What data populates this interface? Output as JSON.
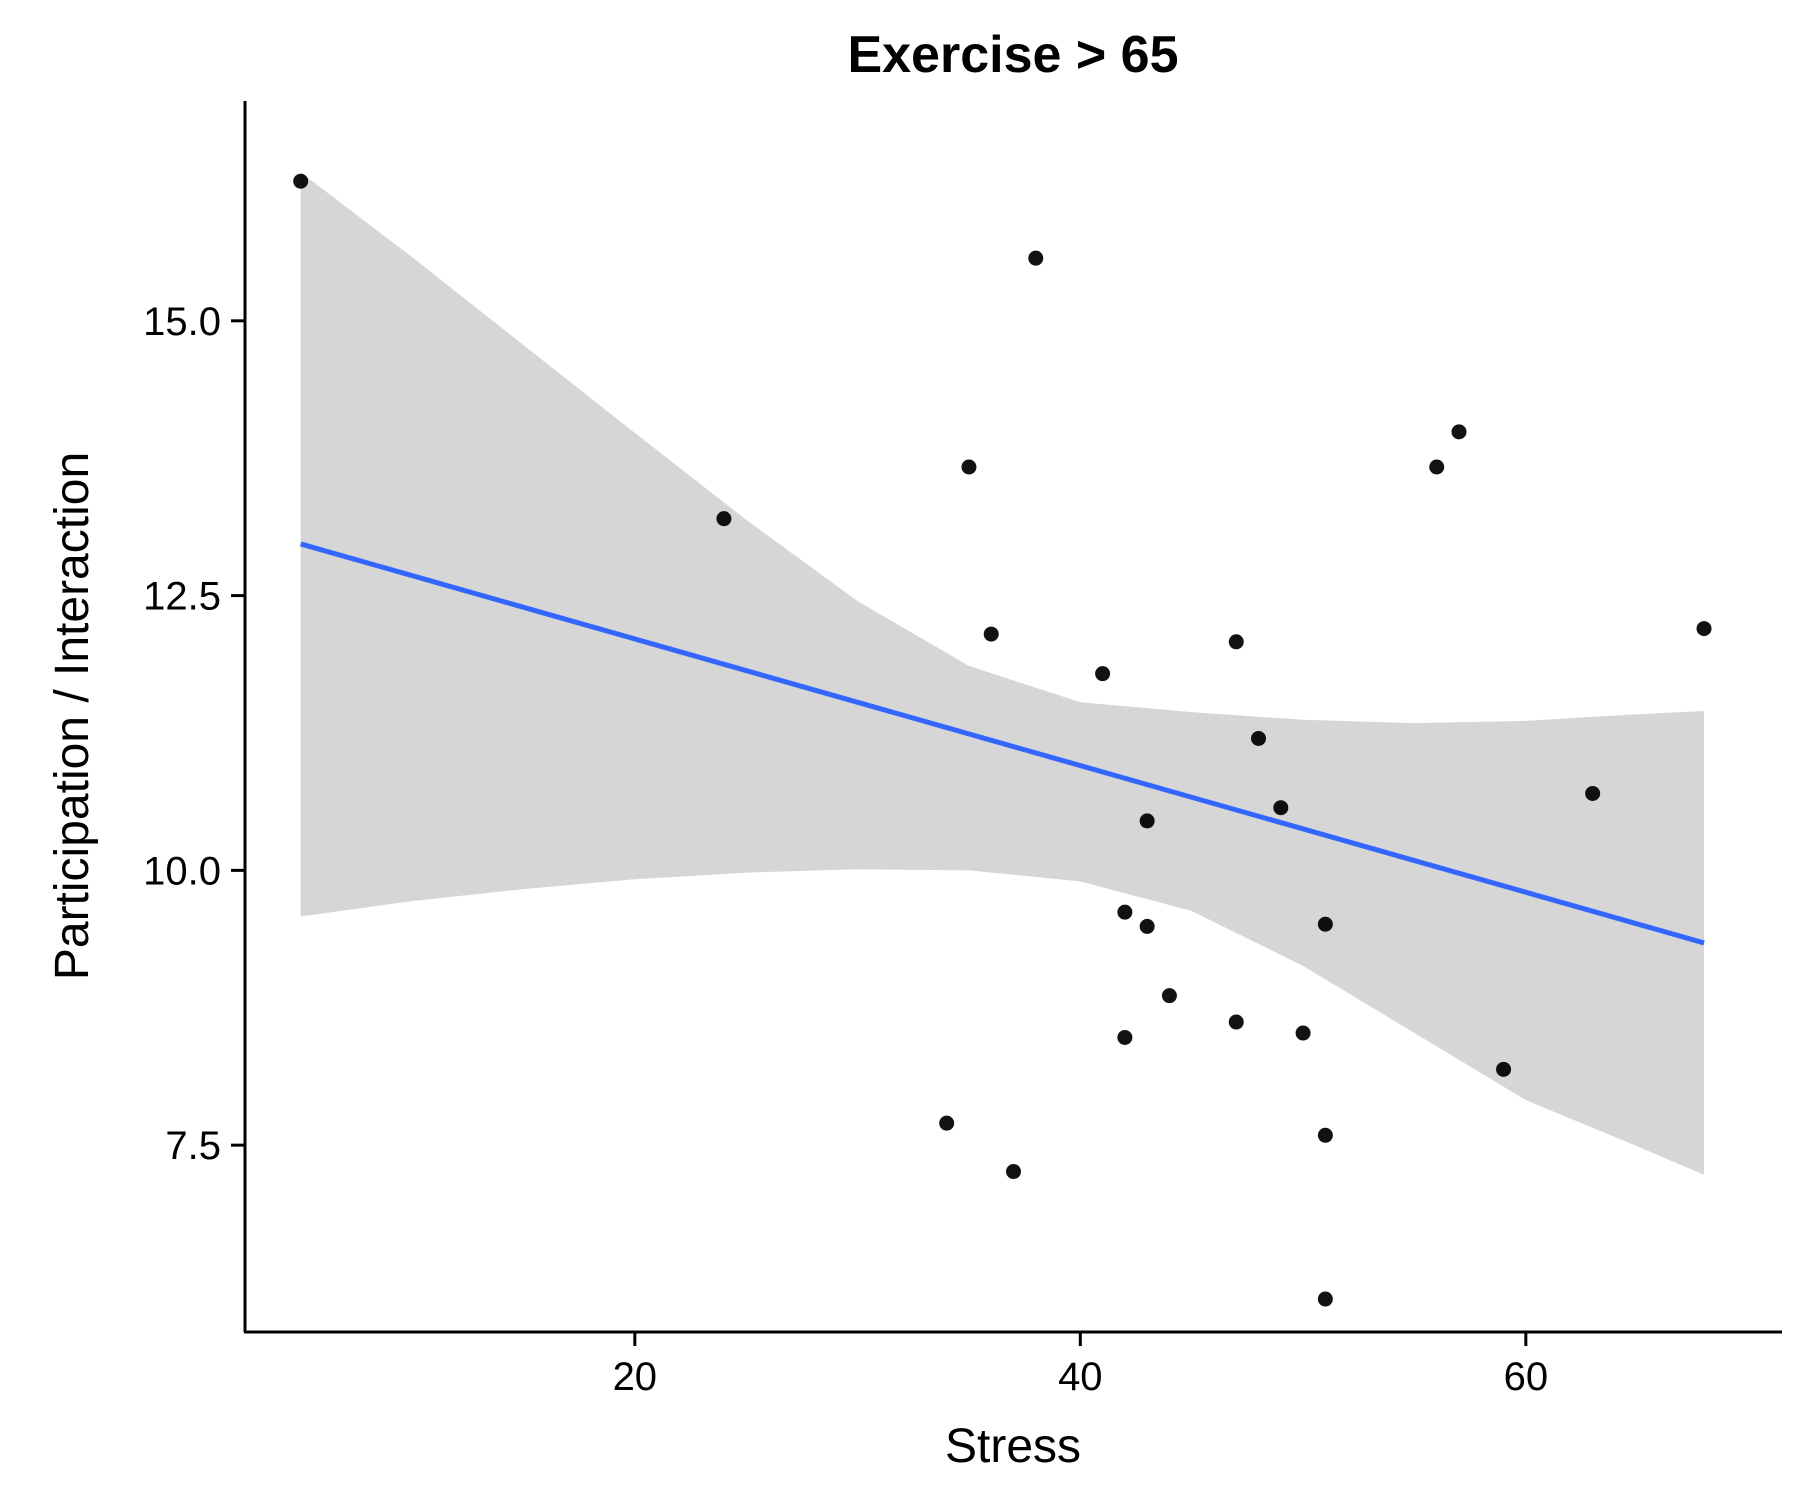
{
  "chart_data": {
    "type": "scatter",
    "title": "Exercise > 65",
    "xlabel": "Stress",
    "ylabel": "Participation / Interaction",
    "xlim": [
      2.5,
      71.5
    ],
    "ylim": [
      5.8,
      17.0
    ],
    "x_ticks": [
      20,
      40,
      60
    ],
    "x_tick_labels": [
      "20",
      "40",
      "60"
    ],
    "y_ticks": [
      7.5,
      10.0,
      12.5,
      15.0
    ],
    "y_tick_labels": [
      "7.5",
      "10.0",
      "12.5",
      "15.0"
    ],
    "grid": false,
    "legend": "none",
    "point_color": "#000000",
    "line_color": "#3366FF",
    "ribbon_color": "#D6D6D6",
    "points": [
      {
        "x": 5,
        "y": 16.27
      },
      {
        "x": 24,
        "y": 13.2
      },
      {
        "x": 34,
        "y": 7.7
      },
      {
        "x": 35,
        "y": 13.67
      },
      {
        "x": 36,
        "y": 12.15
      },
      {
        "x": 37,
        "y": 7.26
      },
      {
        "x": 38,
        "y": 15.57
      },
      {
        "x": 41,
        "y": 11.79
      },
      {
        "x": 42,
        "y": 9.62
      },
      {
        "x": 42,
        "y": 8.48
      },
      {
        "x": 43,
        "y": 10.45
      },
      {
        "x": 43,
        "y": 9.49
      },
      {
        "x": 44,
        "y": 8.86
      },
      {
        "x": 47,
        "y": 12.08
      },
      {
        "x": 47,
        "y": 8.62
      },
      {
        "x": 48,
        "y": 11.2
      },
      {
        "x": 49,
        "y": 10.57
      },
      {
        "x": 50,
        "y": 8.52
      },
      {
        "x": 51,
        "y": 9.51
      },
      {
        "x": 51,
        "y": 7.59
      },
      {
        "x": 51,
        "y": 6.1
      },
      {
        "x": 56,
        "y": 13.67
      },
      {
        "x": 57,
        "y": 13.99
      },
      {
        "x": 59,
        "y": 8.19
      },
      {
        "x": 63,
        "y": 10.7
      },
      {
        "x": 68,
        "y": 12.2
      }
    ],
    "fit_line": {
      "x": [
        5,
        68
      ],
      "y": [
        12.97,
        9.34
      ]
    },
    "confidence_band": {
      "x": [
        5,
        10,
        15,
        20,
        25,
        30,
        35,
        40,
        45,
        50,
        55,
        60,
        65,
        68
      ],
      "lower": [
        9.58,
        9.72,
        9.83,
        9.92,
        9.98,
        10.01,
        10.0,
        9.9,
        9.63,
        9.13,
        8.52,
        7.91,
        7.49,
        7.23
      ],
      "upper": [
        16.35,
        15.58,
        14.78,
        13.98,
        13.19,
        12.45,
        11.86,
        11.53,
        11.44,
        11.37,
        11.34,
        11.36,
        11.42,
        11.45
      ]
    }
  }
}
